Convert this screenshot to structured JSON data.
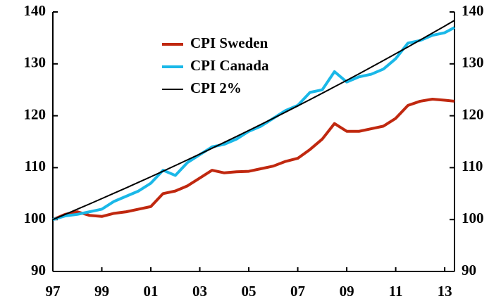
{
  "chart_data": {
    "type": "line",
    "x": [
      1997,
      1997.5,
      1998,
      1998.5,
      1999,
      1999.5,
      2000,
      2000.5,
      2001,
      2001.5,
      2002,
      2002.5,
      2003,
      2003.5,
      2004,
      2004.5,
      2005,
      2005.5,
      2006,
      2006.5,
      2007,
      2007.5,
      2008,
      2008.5,
      2009,
      2009.5,
      2010,
      2010.5,
      2011,
      2011.5,
      2012,
      2012.5,
      2013,
      2013.4
    ],
    "series": [
      {
        "name": "CPI Sweden",
        "color": "#c0280f",
        "values": [
          100,
          101,
          101.5,
          100.8,
          100.6,
          101.2,
          101.5,
          102,
          102.5,
          105,
          105.5,
          106.5,
          108,
          109.5,
          109,
          109.2,
          109.3,
          109.8,
          110.3,
          111.2,
          111.8,
          113.5,
          115.5,
          118.5,
          117,
          117,
          117.5,
          118,
          119.5,
          122,
          122.8,
          123.2,
          123,
          122.8
        ]
      },
      {
        "name": "CPI Canada",
        "color": "#1ab8e8",
        "values": [
          100,
          100.7,
          101,
          101.5,
          102,
          103.5,
          104.5,
          105.5,
          107,
          109.5,
          108.5,
          111,
          112.5,
          114,
          114.5,
          115.5,
          117,
          118,
          119.5,
          121,
          122,
          124.5,
          125,
          128.5,
          126.5,
          127.5,
          128,
          129,
          131,
          134,
          134.5,
          135.5,
          136,
          137
        ]
      },
      {
        "name": "CPI 2%",
        "color": "#000000",
        "values": [
          100,
          100.99,
          102,
          103.01,
          104.04,
          105.08,
          106.12,
          107.18,
          108.24,
          109.32,
          110.41,
          111.51,
          112.62,
          113.74,
          114.87,
          116.01,
          117.17,
          118.33,
          119.51,
          120.7,
          121.9,
          123.11,
          124.34,
          125.58,
          126.82,
          128.08,
          129.36,
          130.65,
          131.95,
          133.26,
          134.59,
          135.93,
          137.28,
          138.38
        ]
      }
    ],
    "xlim": [
      1997,
      2013.4
    ],
    "xticks": [
      {
        "value": 1997,
        "label": "97"
      },
      {
        "value": 1999,
        "label": "99"
      },
      {
        "value": 2001,
        "label": "01"
      },
      {
        "value": 2003,
        "label": "03"
      },
      {
        "value": 2005,
        "label": "05"
      },
      {
        "value": 2007,
        "label": "07"
      },
      {
        "value": 2009,
        "label": "09"
      },
      {
        "value": 2011,
        "label": "11"
      },
      {
        "value": 2013,
        "label": "13"
      }
    ],
    "ylim": [
      90,
      140
    ],
    "yticks": [
      90,
      100,
      110,
      120,
      130,
      140
    ],
    "y2lim": [
      90,
      140
    ],
    "y2ticks": [
      90,
      100,
      110,
      120,
      130,
      140
    ],
    "grid": false
  }
}
